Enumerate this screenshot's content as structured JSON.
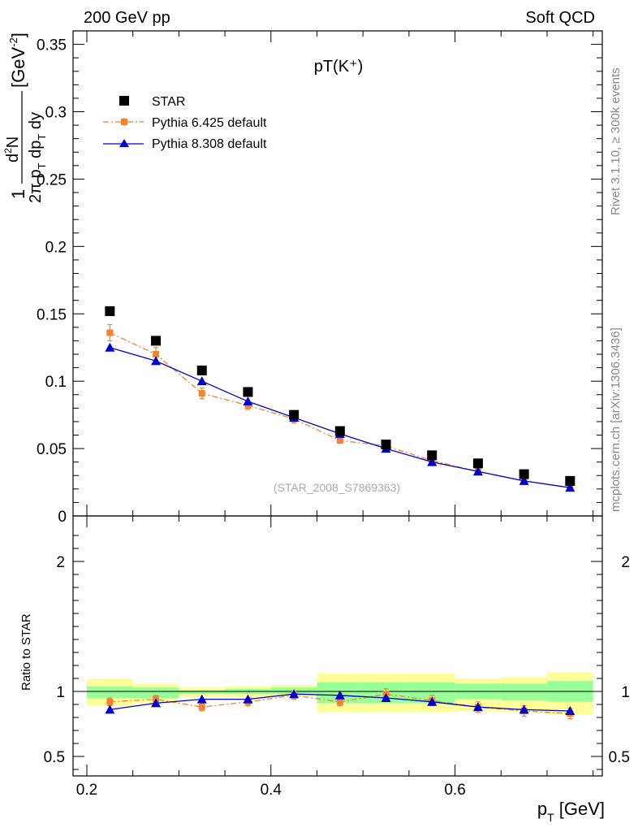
{
  "header": {
    "left": "200 GeV pp",
    "right": "Soft QCD"
  },
  "side": {
    "rivet": "Rivet 3.1.10, ≥ 300k events",
    "mcplots": "mcplots.cern.ch [arXiv:1306.3436]"
  },
  "plot_title": "pT(K⁺)",
  "watermark": "(STAR_2008_S7869363)",
  "legend": [
    {
      "label": "STAR"
    },
    {
      "label": "Pythia 6.425 default"
    },
    {
      "label": "Pythia 8.308 default"
    }
  ],
  "colors": {
    "data": "#000000",
    "p6": "#f58232",
    "p8": "#0000cc",
    "band_inner": "#99ff99",
    "band_outer": "#ffff99"
  },
  "axes": {
    "ylabel_top": "1/(2π pT) d²N/(dpT dy) [GeV⁻²]",
    "ylabel_ratio": "Ratio to STAR",
    "xlabel": "p",
    "xlabel_sub": "T",
    "xlabel_unit": " [GeV]",
    "ylabel_parts": {
      "one": "1",
      "frac_top": "d²N",
      "frac_bot": "2πp",
      "frac_bot_sub": "T",
      "frac_bot2": " dp",
      "frac_bot2_sub": "T",
      "frac_bot3": " dy",
      "unit": "[GeV",
      "unit_sup": "-2",
      "unit_end": "]"
    }
  },
  "chart_data": [
    {
      "type": "scatter",
      "name": "main",
      "xlim": [
        0.185,
        0.76
      ],
      "ylim": [
        0,
        0.36
      ],
      "x_ticks": [
        0.2,
        0.4,
        0.6
      ],
      "x_tick_labels": [
        "0.2",
        "0.4",
        "0.6"
      ],
      "y_ticks": [
        0,
        0.05,
        0.1,
        0.15,
        0.2,
        0.25,
        0.3,
        0.35
      ],
      "y_tick_labels": [
        "0",
        "0.05",
        "0.1",
        "0.15",
        "0.2",
        "0.25",
        "0.3",
        "0.35"
      ],
      "legend_position": "top-left",
      "series": [
        {
          "name": "STAR",
          "marker": "square",
          "x": [
            0.225,
            0.275,
            0.325,
            0.375,
            0.425,
            0.475,
            0.525,
            0.575,
            0.625,
            0.675,
            0.725
          ],
          "y": [
            0.152,
            0.13,
            0.108,
            0.092,
            0.075,
            0.063,
            0.053,
            0.045,
            0.039,
            0.031,
            0.026
          ]
        },
        {
          "name": "Pythia 6.425 default",
          "marker": "square-small",
          "line": "dashdot",
          "x": [
            0.225,
            0.275,
            0.325,
            0.375,
            0.425,
            0.475,
            0.525,
            0.575,
            0.625,
            0.675,
            0.725
          ],
          "y": [
            0.136,
            0.12,
            0.091,
            0.082,
            0.072,
            0.056,
            0.052,
            0.041,
            0.033,
            0.026,
            0.021
          ],
          "err": [
            0.006,
            0.005,
            0.004,
            0.003,
            0.003,
            0.002,
            0.002,
            0.002,
            0.002,
            0.002,
            0.002
          ]
        },
        {
          "name": "Pythia 8.308 default",
          "marker": "triangle",
          "line": "solid",
          "x": [
            0.225,
            0.275,
            0.325,
            0.375,
            0.425,
            0.475,
            0.525,
            0.575,
            0.625,
            0.675,
            0.725
          ],
          "y": [
            0.125,
            0.115,
            0.1,
            0.085,
            0.073,
            0.061,
            0.05,
            0.04,
            0.033,
            0.026,
            0.021
          ]
        }
      ]
    },
    {
      "type": "scatter",
      "name": "ratio",
      "xlim": [
        0.185,
        0.76
      ],
      "ylim": [
        0.35,
        2.35
      ],
      "y_ticks": [
        0.5,
        1,
        2
      ],
      "y_tick_labels": [
        "0.5",
        "1",
        "2"
      ],
      "bands": {
        "x_edges": [
          0.2,
          0.25,
          0.3,
          0.35,
          0.4,
          0.45,
          0.5,
          0.55,
          0.6,
          0.65,
          0.7,
          0.75
        ],
        "outer_lo": [
          0.89,
          0.91,
          0.96,
          0.96,
          0.96,
          0.84,
          0.84,
          0.84,
          0.85,
          0.84,
          0.82
        ],
        "outer_hi": [
          1.1,
          1.06,
          1.03,
          1.04,
          1.05,
          1.14,
          1.14,
          1.14,
          1.1,
          1.11,
          1.15
        ],
        "inner_lo": [
          0.95,
          0.95,
          0.98,
          0.98,
          0.98,
          0.91,
          0.91,
          0.91,
          0.94,
          0.93,
          0.92
        ],
        "inner_hi": [
          1.04,
          1.03,
          1.01,
          1.02,
          1.03,
          1.07,
          1.07,
          1.07,
          1.06,
          1.06,
          1.08
        ]
      },
      "series": [
        {
          "name": "Pythia 6.425 default",
          "marker": "square-small",
          "line": "dashdot",
          "x": [
            0.225,
            0.275,
            0.325,
            0.375,
            0.425,
            0.475,
            0.525,
            0.575,
            0.625,
            0.675,
            0.725
          ],
          "y": [
            0.92,
            0.94,
            0.88,
            0.92,
            0.97,
            0.92,
            0.98,
            0.93,
            0.88,
            0.85,
            0.83
          ],
          "err": [
            0.03,
            0.03,
            0.03,
            0.03,
            0.03,
            0.03,
            0.04,
            0.04,
            0.04,
            0.04,
            0.04
          ]
        },
        {
          "name": "Pythia 8.308 default",
          "marker": "triangle",
          "line": "solid",
          "x": [
            0.225,
            0.275,
            0.325,
            0.375,
            0.425,
            0.475,
            0.525,
            0.575,
            0.625,
            0.675,
            0.725
          ],
          "y": [
            0.86,
            0.91,
            0.94,
            0.94,
            0.98,
            0.97,
            0.95,
            0.92,
            0.88,
            0.86,
            0.85
          ]
        }
      ]
    }
  ]
}
